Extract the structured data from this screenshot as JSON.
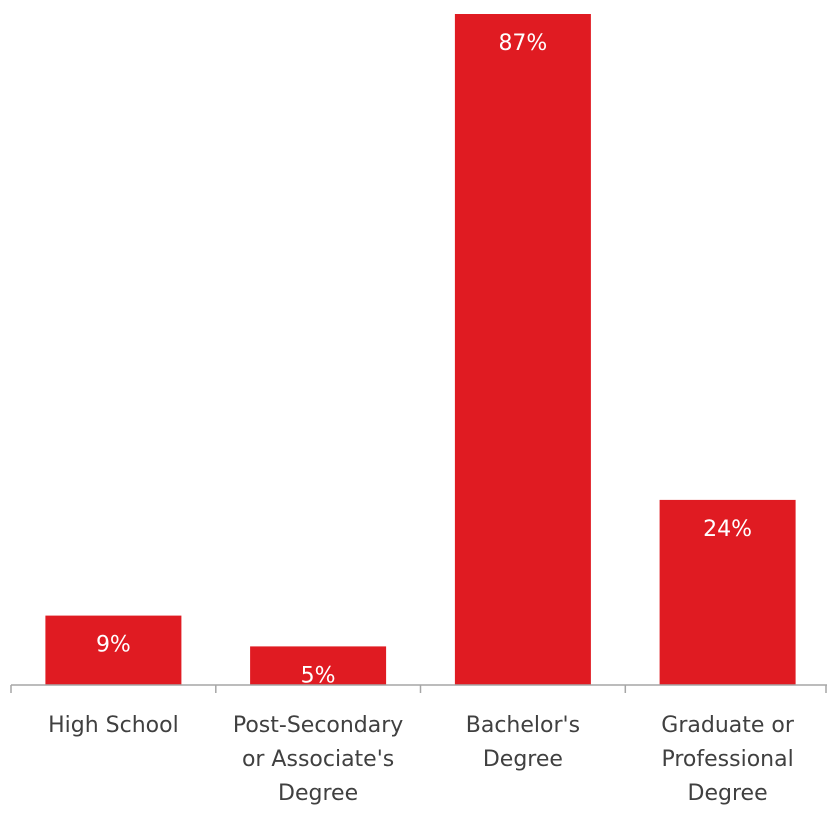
{
  "chart_data": {
    "type": "bar",
    "title": "",
    "xlabel": "",
    "ylabel": "",
    "categories": [
      [
        "High School"
      ],
      [
        "Post-Secondary",
        "or Associate's",
        "Degree"
      ],
      [
        "Bachelor's",
        "Degree"
      ],
      [
        "Graduate or",
        "Professional",
        "Degree"
      ]
    ],
    "values": [
      9,
      5,
      87,
      24
    ],
    "data_labels": [
      "9%",
      "5%",
      "87%",
      "24%"
    ],
    "ylim": [
      0,
      87
    ],
    "grid": false,
    "legend": "none",
    "colors": {
      "bar": "#e01b22",
      "axis": "#a6a6a6",
      "label_text": "#404040",
      "data_label_text": "#ffffff"
    }
  }
}
